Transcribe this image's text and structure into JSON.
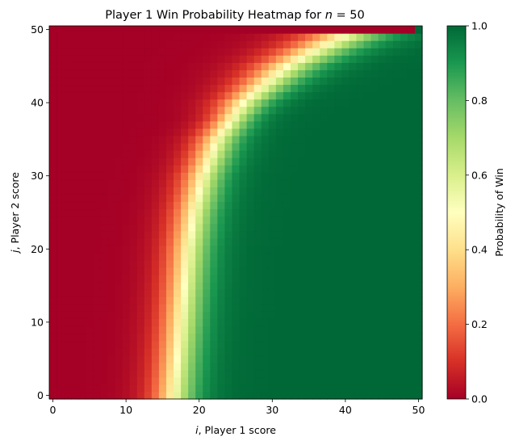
{
  "chart_data": {
    "type": "heatmap",
    "title": "Player 1 Win Probability Heatmap for n = 50",
    "title_math": {
      "prefix": "Player 1 Win Probability Heatmap for ",
      "var": "n",
      "suffix": " = 50"
    },
    "n": 50,
    "xlabel": "i, Player 1 score",
    "xlabel_math": {
      "var": "i",
      "text": ", Player 1 score"
    },
    "ylabel": "j, Player 2 score",
    "ylabel_math": {
      "var": "j",
      "text": ", Player 2 score"
    },
    "x_range": [
      0,
      50
    ],
    "y_range": [
      0,
      50
    ],
    "x_ticks": [
      0,
      10,
      20,
      30,
      40,
      50
    ],
    "y_ticks": [
      0,
      10,
      20,
      30,
      40,
      50
    ],
    "colorbar": {
      "label": "Probability of Win",
      "range": [
        0.0,
        1.0
      ],
      "ticks": [
        0.0,
        0.2,
        0.4,
        0.6,
        0.8,
        1.0
      ],
      "tick_labels": [
        "0.0",
        "0.2",
        "0.4",
        "0.6",
        "0.8",
        "1.0"
      ],
      "colormap": "RdYlGn",
      "stops": [
        "#a50026",
        "#d73027",
        "#f46d43",
        "#fdae61",
        "#fee08b",
        "#ffffbf",
        "#d9ef8b",
        "#a6d96a",
        "#66bd63",
        "#1a9850",
        "#006837"
      ]
    },
    "value_model": {
      "description": "P(win) is approximately 0.5 along a boundary curve and rises steeply to the right of it",
      "boundary_i_by_j": [
        {
          "j": 0,
          "i": 16.5
        },
        {
          "j": 10,
          "i": 17.5
        },
        {
          "j": 20,
          "i": 18.5
        },
        {
          "j": 25,
          "i": 19.3
        },
        {
          "j": 30,
          "i": 20.5
        },
        {
          "j": 35,
          "i": 22.5
        },
        {
          "j": 40,
          "i": 26.0
        },
        {
          "j": 43,
          "i": 29.5
        },
        {
          "j": 45,
          "i": 32.0
        },
        {
          "j": 47,
          "i": 35.5
        },
        {
          "j": 49,
          "i": 39.5
        },
        {
          "j": 50,
          "i": 44.0
        }
      ],
      "width_i": 4.0
    }
  }
}
